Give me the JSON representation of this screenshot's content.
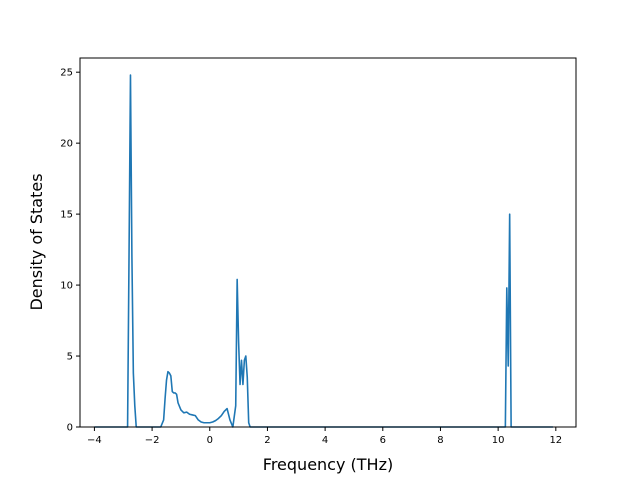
{
  "chart_data": {
    "type": "line",
    "title": "",
    "xlabel": "Frequency (THz)",
    "ylabel": "Density of States",
    "xlim": [
      -4.5,
      12.7
    ],
    "ylim": [
      0,
      26
    ],
    "xticks": [
      -4,
      -2,
      0,
      2,
      4,
      6,
      8,
      10,
      12
    ],
    "xtick_labels": [
      "−4",
      "−2",
      "0",
      "2",
      "4",
      "6",
      "8",
      "10",
      "12"
    ],
    "yticks": [
      0,
      5,
      10,
      15,
      20,
      25
    ],
    "ytick_labels": [
      "0",
      "5",
      "10",
      "15",
      "20",
      "25"
    ],
    "grid": false,
    "line_color": "#1f77b4",
    "series": [
      {
        "x": [
          -4.0,
          -2.85,
          -2.8,
          -2.75,
          -2.7,
          -2.65,
          -2.6,
          -2.55,
          -2.5,
          -1.7,
          -1.6,
          -1.55,
          -1.5,
          -1.45,
          -1.4,
          -1.35,
          -1.3,
          -1.25,
          -1.2,
          -1.15,
          -1.1,
          -1.0,
          -0.9,
          -0.8,
          -0.7,
          -0.6,
          -0.5,
          -0.4,
          -0.3,
          -0.2,
          -0.1,
          0.0,
          0.1,
          0.2,
          0.3,
          0.4,
          0.5,
          0.6,
          0.7,
          0.8,
          0.9,
          0.95,
          1.0,
          1.05,
          1.1,
          1.15,
          1.2,
          1.25,
          1.3,
          1.35,
          1.4,
          1.45,
          1.5,
          1.55,
          1.6,
          1.65,
          1.7,
          1.75,
          1.8,
          10.25,
          10.3,
          10.35,
          10.4,
          10.45,
          10.5,
          10.55,
          10.6,
          11.9
        ],
        "y": [
          0,
          0,
          12.0,
          24.8,
          12.0,
          3.8,
          1.5,
          0.0,
          0,
          0,
          0.5,
          2.0,
          3.3,
          3.9,
          3.8,
          3.6,
          2.5,
          2.4,
          2.4,
          2.3,
          1.7,
          1.2,
          1.0,
          1.05,
          0.9,
          0.85,
          0.8,
          0.5,
          0.35,
          0.3,
          0.3,
          0.3,
          0.35,
          0.45,
          0.6,
          0.8,
          1.1,
          1.3,
          0.5,
          0.0,
          1.5,
          10.4,
          6.0,
          3.0,
          4.7,
          3.0,
          4.7,
          5.0,
          3.5,
          0.3,
          0,
          0,
          0,
          0,
          0,
          0,
          0,
          0,
          0,
          0,
          9.8,
          4.3,
          15.0,
          0.0,
          0,
          0,
          0,
          0
        ]
      }
    ]
  }
}
